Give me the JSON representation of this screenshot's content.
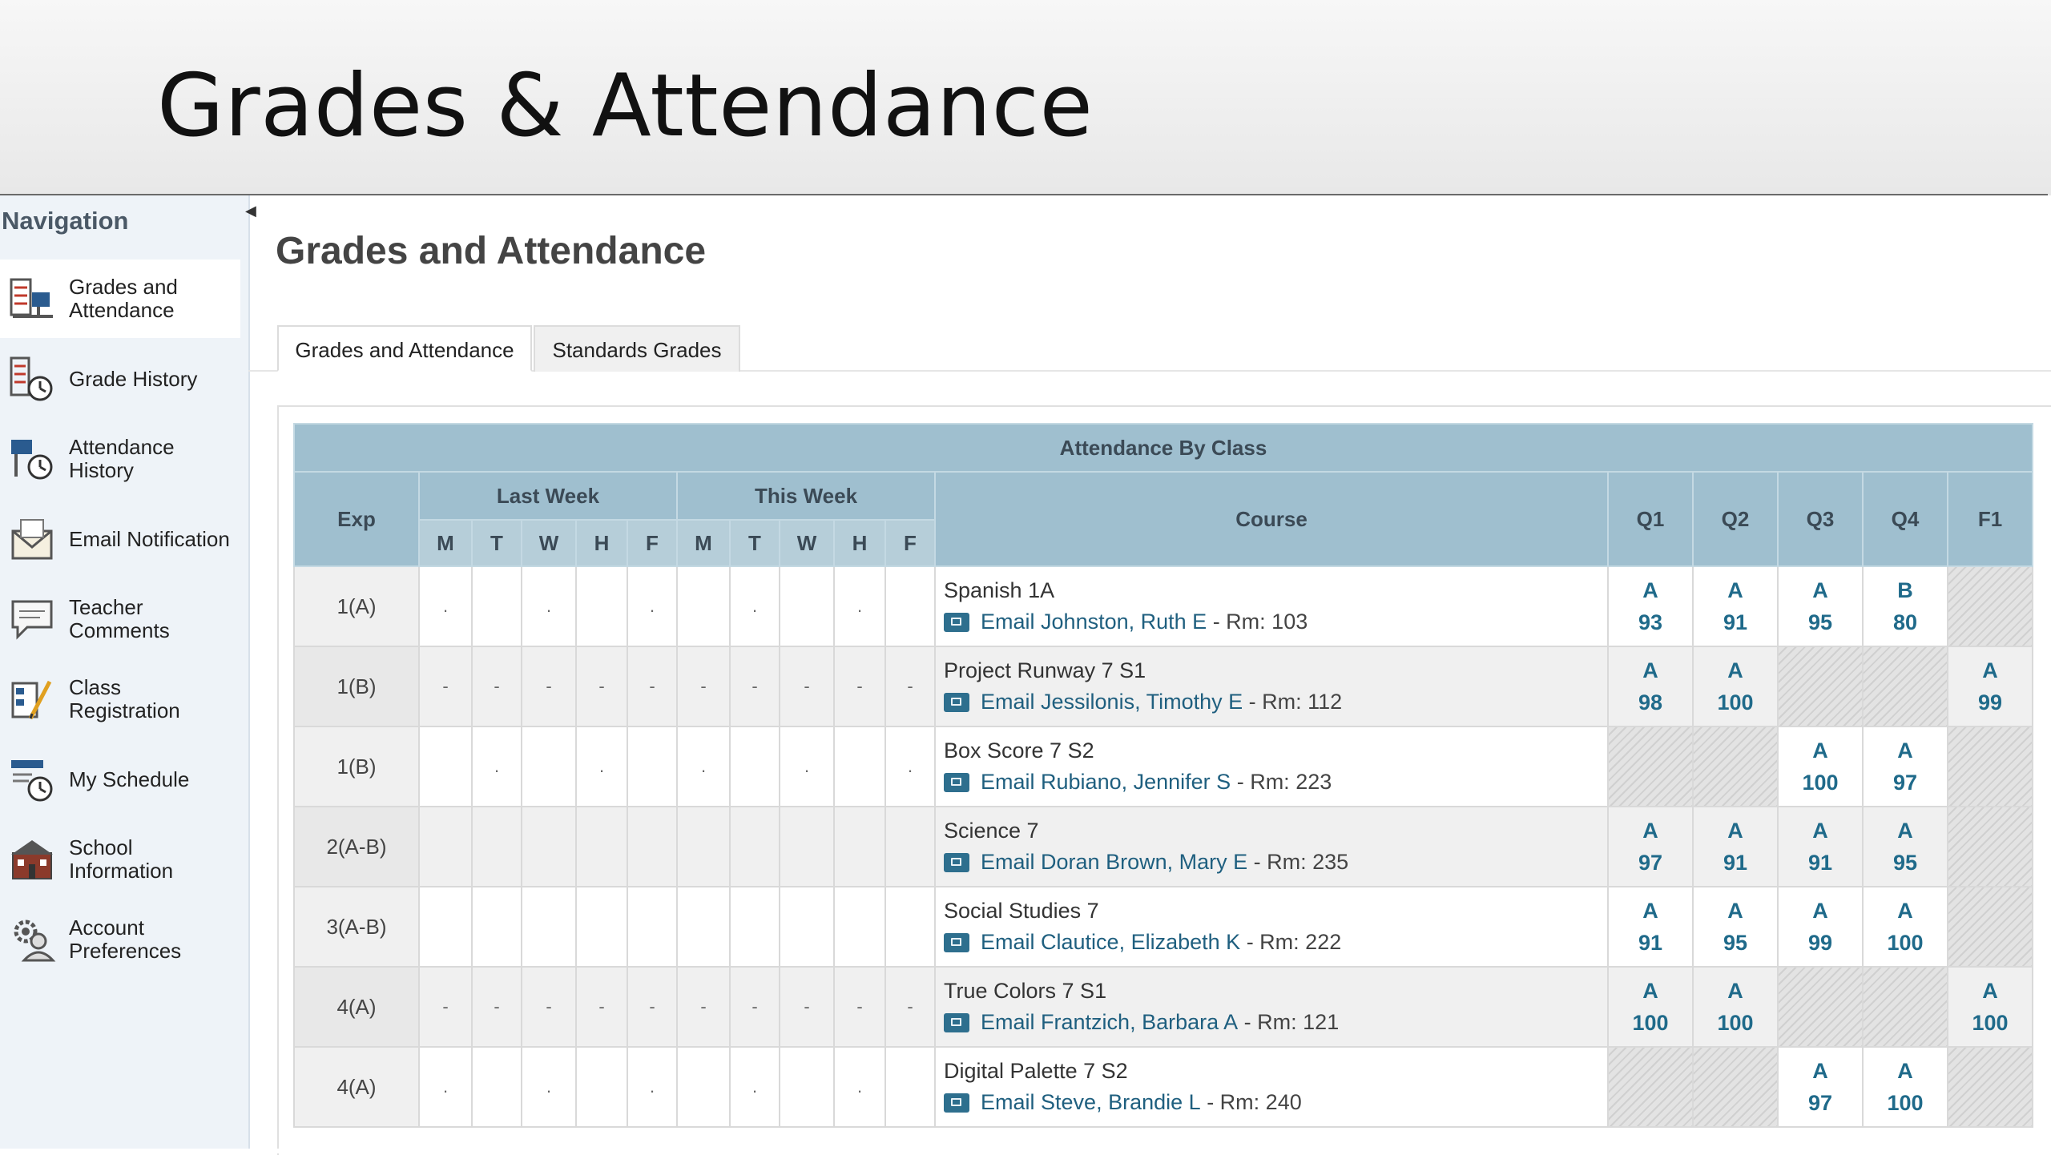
{
  "slide": {
    "title": "Grades & Attendance"
  },
  "navigation": {
    "title": "Navigation",
    "items": [
      {
        "label": "Grades and Attendance",
        "icon": "grades-attendance-icon",
        "active": true
      },
      {
        "label": "Grade History",
        "icon": "grade-history-icon"
      },
      {
        "label": "Attendance History",
        "icon": "attendance-history-icon"
      },
      {
        "label": "Email Notification",
        "icon": "email-notification-icon"
      },
      {
        "label": "Teacher Comments",
        "icon": "teacher-comments-icon"
      },
      {
        "label": "Class Registration",
        "icon": "class-registration-icon"
      },
      {
        "label": "My Schedule",
        "icon": "my-schedule-icon"
      },
      {
        "label": "School Information",
        "icon": "school-information-icon"
      },
      {
        "label": "Account Preferences",
        "icon": "account-preferences-icon"
      }
    ]
  },
  "page": {
    "heading": "Grades and Attendance",
    "tabs": [
      {
        "label": "Grades and Attendance",
        "selected": true
      },
      {
        "label": "Standards Grades",
        "selected": false
      }
    ]
  },
  "table": {
    "title": "Attendance By Class",
    "headers": {
      "exp": "Exp",
      "last_week": "Last Week",
      "this_week": "This Week",
      "course": "Course",
      "days": [
        "M",
        "T",
        "W",
        "H",
        "F",
        "M",
        "T",
        "W",
        "H",
        "F"
      ],
      "terms": [
        "Q1",
        "Q2",
        "Q3",
        "Q4",
        "F1"
      ]
    },
    "email_prefix": "Email",
    "rows": [
      {
        "exp": "1(A)",
        "days": [
          ".",
          "",
          ".",
          "",
          ".",
          "",
          ".",
          "",
          ".",
          ""
        ],
        "course": "Spanish 1A",
        "teacher": "Johnston, Ruth E",
        "room": "- Rm: 103",
        "grades": [
          {
            "letter": "A",
            "pct": "93"
          },
          {
            "letter": "A",
            "pct": "91"
          },
          {
            "letter": "A",
            "pct": "95"
          },
          {
            "letter": "B",
            "pct": "80"
          },
          null
        ]
      },
      {
        "exp": "1(B)",
        "days": [
          "-",
          "-",
          "-",
          "-",
          "-",
          "-",
          "-",
          "-",
          "-",
          "-"
        ],
        "course": "Project Runway 7 S1",
        "teacher": "Jessilonis, Timothy E",
        "room": "- Rm: 112",
        "grades": [
          {
            "letter": "A",
            "pct": "98"
          },
          {
            "letter": "A",
            "pct": "100"
          },
          null,
          null,
          {
            "letter": "A",
            "pct": "99"
          }
        ]
      },
      {
        "exp": "1(B)",
        "days": [
          "",
          ".",
          "",
          ".",
          "",
          ".",
          "",
          ".",
          "",
          "."
        ],
        "course": "Box Score 7 S2",
        "teacher": "Rubiano, Jennifer S",
        "room": "- Rm: 223",
        "grades": [
          null,
          null,
          {
            "letter": "A",
            "pct": "100"
          },
          {
            "letter": "A",
            "pct": "97"
          },
          null
        ]
      },
      {
        "exp": "2(A-B)",
        "days": [
          "",
          "",
          "",
          "",
          "",
          "",
          "",
          "",
          "",
          ""
        ],
        "course": "Science 7",
        "teacher": "Doran Brown, Mary E",
        "room": "- Rm: 235",
        "grades": [
          {
            "letter": "A",
            "pct": "97"
          },
          {
            "letter": "A",
            "pct": "91"
          },
          {
            "letter": "A",
            "pct": "91"
          },
          {
            "letter": "A",
            "pct": "95"
          },
          null
        ]
      },
      {
        "exp": "3(A-B)",
        "days": [
          "",
          "",
          "",
          "",
          "",
          "",
          "",
          "",
          "",
          ""
        ],
        "course": "Social Studies 7",
        "teacher": "Clautice, Elizabeth K",
        "room": "- Rm: 222",
        "grades": [
          {
            "letter": "A",
            "pct": "91"
          },
          {
            "letter": "A",
            "pct": "95"
          },
          {
            "letter": "A",
            "pct": "99"
          },
          {
            "letter": "A",
            "pct": "100"
          },
          null
        ]
      },
      {
        "exp": "4(A)",
        "days": [
          "-",
          "-",
          "-",
          "-",
          "-",
          "-",
          "-",
          "-",
          "-",
          "-"
        ],
        "course": "True Colors 7 S1",
        "teacher": "Frantzich, Barbara A",
        "room": "- Rm: 121",
        "grades": [
          {
            "letter": "A",
            "pct": "100"
          },
          {
            "letter": "A",
            "pct": "100"
          },
          null,
          null,
          {
            "letter": "A",
            "pct": "100"
          }
        ]
      },
      {
        "exp": "4(A)",
        "days": [
          ".",
          "",
          ".",
          "",
          ".",
          "",
          ".",
          "",
          ".",
          ""
        ],
        "course": "Digital Palette 7 S2",
        "teacher": "Steve, Brandie L",
        "room": "- Rm: 240",
        "grades": [
          null,
          null,
          {
            "letter": "A",
            "pct": "97"
          },
          {
            "letter": "A",
            "pct": "100"
          },
          null
        ]
      }
    ]
  }
}
